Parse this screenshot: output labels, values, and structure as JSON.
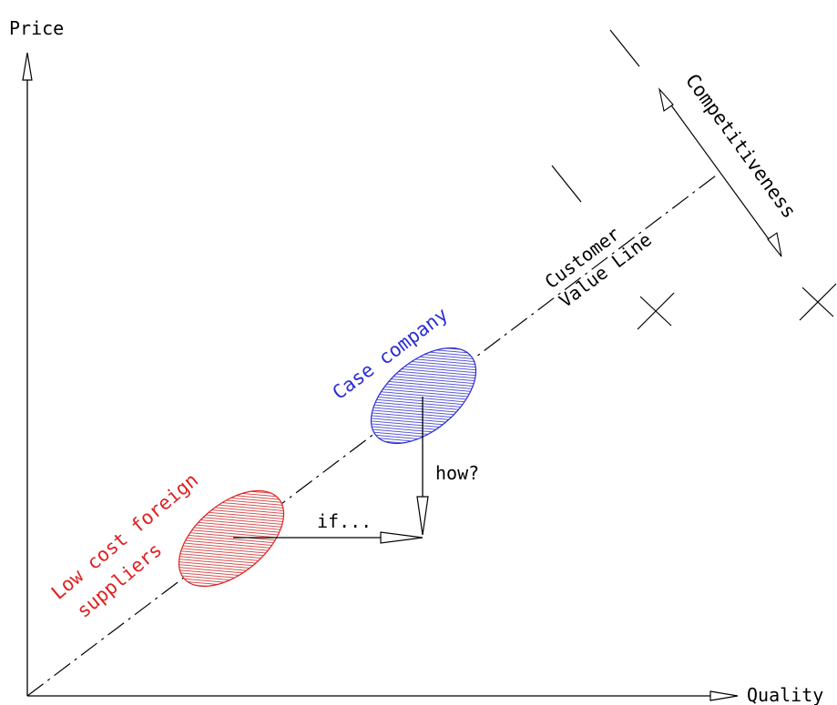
{
  "axes": {
    "y_label": "Price",
    "x_label": "Quality"
  },
  "customer_value_line": {
    "label_line1": "Customer",
    "label_line2": "Value Line"
  },
  "competitiveness": {
    "label": "Competitiveness"
  },
  "case_company": {
    "label": "Case company",
    "color": "#2b2bd6",
    "fill": "#3030c8"
  },
  "low_cost_suppliers": {
    "label_line1": "Low cost foreign",
    "label_line2": "suppliers",
    "color": "#e02020",
    "fill": "#c82828"
  },
  "arrows": {
    "if_label": "if...",
    "how_label": "how?"
  }
}
